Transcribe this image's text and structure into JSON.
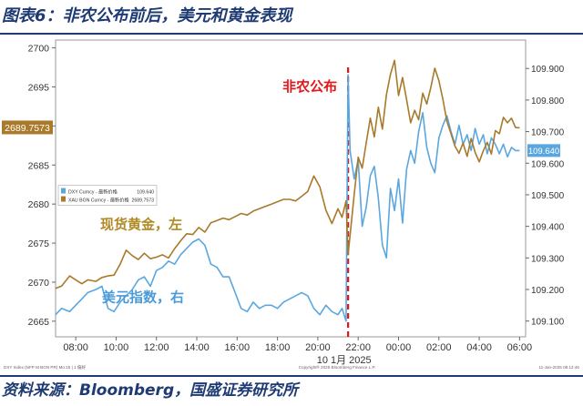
{
  "title": "图表6：非农公布前后，美元和黄金表现",
  "source": "资料来源：Bloomberg，国盛证券研究所",
  "colors": {
    "gold": "#a87a2a",
    "dxy": "#5aa7e0",
    "event": "#e0181b",
    "text_blue": "#1f3b73",
    "label_gold": "#b08a25",
    "label_blue": "#4a9ad8"
  },
  "chart_data": {
    "type": "line",
    "title": "",
    "xlabel": "10 1月 2025",
    "x_ticks": [
      "08:00",
      "10:00",
      "12:00",
      "14:00",
      "16:00",
      "18:00",
      "20:00",
      "22:00",
      "00:00",
      "02:00",
      "04:00",
      "06:00"
    ],
    "y_left": {
      "label": "",
      "ticks": [
        2665,
        2670,
        2675,
        2680,
        2685,
        2690,
        2695,
        2700
      ],
      "ylim": [
        2663,
        2701
      ],
      "last_value": "2689.7573"
    },
    "y_right": {
      "label": "",
      "ticks": [
        "109.100",
        "109.200",
        "109.300",
        "109.400",
        "109.500",
        "109.600",
        "109.700",
        "109.800",
        "109.900"
      ],
      "ylim": [
        109.05,
        109.99
      ],
      "last_value": "109.640"
    },
    "legend": {
      "placement": "middle-left",
      "entries": [
        {
          "name": "DXY Curncy - 最新价格",
          "value": "109.640"
        },
        {
          "name": "XAU BGN Curncy - 最新价格",
          "value": "2689.7573"
        }
      ]
    },
    "annotations": {
      "event": "非农公布",
      "gold_label": "现货黄金，左",
      "dxy_label": "美元指数，右"
    },
    "footer": {
      "left": "DXY Index (NFP M BGN PR)  Mo:15 | 1  偏好",
      "center": "Copyright® 2025 Bloomberg Finance L.P.",
      "right": "11-Jan-2025 08:12:46"
    },
    "event_time": "21:30",
    "series": [
      {
        "name": "XAU BGN Curncy - 最新价格",
        "axis": "left",
        "points": [
          [
            7.0,
            2669.2
          ],
          [
            7.3,
            2669.5
          ],
          [
            7.7,
            2670.8
          ],
          [
            8.0,
            2670.3
          ],
          [
            8.3,
            2669.8
          ],
          [
            8.6,
            2670.3
          ],
          [
            9.0,
            2670.1
          ],
          [
            9.3,
            2670.6
          ],
          [
            9.6,
            2670.8
          ],
          [
            9.9,
            2670.9
          ],
          [
            10.2,
            2672.3
          ],
          [
            10.5,
            2674.1
          ],
          [
            10.8,
            2673.4
          ],
          [
            11.1,
            2672.9
          ],
          [
            11.4,
            2673.7
          ],
          [
            11.7,
            2673.0
          ],
          [
            12.0,
            2673.2
          ],
          [
            12.3,
            2673.5
          ],
          [
            12.6,
            2673.1
          ],
          [
            12.9,
            2674.3
          ],
          [
            13.2,
            2675.3
          ],
          [
            13.5,
            2676.2
          ],
          [
            13.8,
            2676.1
          ],
          [
            14.1,
            2677.0
          ],
          [
            14.4,
            2676.4
          ],
          [
            14.7,
            2677.6
          ],
          [
            15.0,
            2677.9
          ],
          [
            15.3,
            2678.2
          ],
          [
            15.6,
            2678.0
          ],
          [
            15.9,
            2678.4
          ],
          [
            16.2,
            2678.8
          ],
          [
            16.5,
            2678.6
          ],
          [
            16.8,
            2679.1
          ],
          [
            17.1,
            2679.4
          ],
          [
            17.4,
            2679.7
          ],
          [
            17.7,
            2680.0
          ],
          [
            18.0,
            2680.3
          ],
          [
            18.3,
            2680.6
          ],
          [
            18.6,
            2680.6
          ],
          [
            18.9,
            2680.4
          ],
          [
            19.2,
            2681.0
          ],
          [
            19.5,
            2681.6
          ],
          [
            19.8,
            2683.6
          ],
          [
            20.1,
            2682.2
          ],
          [
            20.4,
            2679.2
          ],
          [
            20.7,
            2677.5
          ],
          [
            21.0,
            2679.4
          ],
          [
            21.2,
            2678.3
          ],
          [
            21.4,
            2680.4
          ],
          [
            21.5,
            2673.5
          ],
          [
            21.6,
            2676.0
          ],
          [
            21.8,
            2681.2
          ],
          [
            22.0,
            2686.0
          ],
          [
            22.2,
            2684.6
          ],
          [
            22.4,
            2687.8
          ],
          [
            22.6,
            2691.0
          ],
          [
            22.8,
            2688.6
          ],
          [
            23.0,
            2692.4
          ],
          [
            23.2,
            2689.6
          ],
          [
            23.4,
            2694.0
          ],
          [
            23.6,
            2696.6
          ],
          [
            23.8,
            2698.4
          ],
          [
            24.0,
            2693.9
          ],
          [
            24.2,
            2696.2
          ],
          [
            24.4,
            2693.4
          ],
          [
            24.6,
            2690.4
          ],
          [
            24.8,
            2692.0
          ],
          [
            25.0,
            2690.8
          ],
          [
            25.2,
            2694.2
          ],
          [
            25.4,
            2692.8
          ],
          [
            25.6,
            2694.9
          ],
          [
            25.8,
            2697.4
          ],
          [
            26.0,
            2695.8
          ],
          [
            26.2,
            2693.4
          ],
          [
            26.4,
            2690.6
          ],
          [
            26.6,
            2689.0
          ],
          [
            26.8,
            2687.4
          ],
          [
            27.0,
            2686.5
          ],
          [
            27.2,
            2687.8
          ],
          [
            27.4,
            2686.1
          ],
          [
            27.6,
            2688.4
          ],
          [
            27.8,
            2686.6
          ],
          [
            28.0,
            2685.4
          ],
          [
            28.2,
            2686.8
          ],
          [
            28.4,
            2687.9
          ],
          [
            28.6,
            2686.4
          ],
          [
            28.8,
            2689.4
          ],
          [
            29.0,
            2689.0
          ],
          [
            29.2,
            2691.1
          ],
          [
            29.4,
            2690.4
          ],
          [
            29.6,
            2691.0
          ],
          [
            29.8,
            2689.8
          ],
          [
            30.0,
            2689.76
          ]
        ]
      },
      {
        "name": "DXY Curncy - 最新价格",
        "axis": "right",
        "points": [
          [
            7.0,
            109.12
          ],
          [
            7.3,
            109.14
          ],
          [
            7.7,
            109.13
          ],
          [
            8.0,
            109.15
          ],
          [
            8.3,
            109.17
          ],
          [
            8.6,
            109.19
          ],
          [
            9.0,
            109.2
          ],
          [
            9.3,
            109.21
          ],
          [
            9.6,
            109.14
          ],
          [
            9.9,
            109.13
          ],
          [
            10.2,
            109.16
          ],
          [
            10.5,
            109.18
          ],
          [
            10.8,
            109.2
          ],
          [
            11.1,
            109.23
          ],
          [
            11.4,
            109.24
          ],
          [
            11.7,
            109.21
          ],
          [
            12.0,
            109.26
          ],
          [
            12.3,
            109.27
          ],
          [
            12.6,
            109.29
          ],
          [
            12.9,
            109.28
          ],
          [
            13.2,
            109.31
          ],
          [
            13.5,
            109.33
          ],
          [
            13.8,
            109.35
          ],
          [
            14.1,
            109.36
          ],
          [
            14.4,
            109.34
          ],
          [
            14.7,
            109.28
          ],
          [
            15.0,
            109.27
          ],
          [
            15.3,
            109.24
          ],
          [
            15.6,
            109.24
          ],
          [
            15.9,
            109.19
          ],
          [
            16.2,
            109.14
          ],
          [
            16.5,
            109.13
          ],
          [
            16.8,
            109.16
          ],
          [
            17.1,
            109.14
          ],
          [
            17.4,
            109.15
          ],
          [
            17.7,
            109.15
          ],
          [
            18.0,
            109.14
          ],
          [
            18.3,
            109.16
          ],
          [
            18.6,
            109.17
          ],
          [
            18.9,
            109.18
          ],
          [
            19.2,
            109.19
          ],
          [
            19.5,
            109.18
          ],
          [
            19.8,
            109.14
          ],
          [
            20.1,
            109.12
          ],
          [
            20.4,
            109.15
          ],
          [
            20.7,
            109.13
          ],
          [
            21.0,
            109.12
          ],
          [
            21.2,
            109.14
          ],
          [
            21.4,
            109.1
          ],
          [
            21.5,
            109.88
          ],
          [
            21.6,
            109.64
          ],
          [
            21.8,
            109.55
          ],
          [
            22.0,
            109.61
          ],
          [
            22.2,
            109.4
          ],
          [
            22.4,
            109.46
          ],
          [
            22.6,
            109.56
          ],
          [
            22.8,
            109.59
          ],
          [
            23.0,
            109.49
          ],
          [
            23.2,
            109.34
          ],
          [
            23.4,
            109.3
          ],
          [
            23.6,
            109.52
          ],
          [
            23.8,
            109.45
          ],
          [
            24.0,
            109.55
          ],
          [
            24.2,
            109.41
          ],
          [
            24.4,
            109.58
          ],
          [
            24.6,
            109.64
          ],
          [
            24.8,
            109.6
          ],
          [
            25.0,
            109.7
          ],
          [
            25.2,
            109.76
          ],
          [
            25.4,
            109.65
          ],
          [
            25.6,
            109.6
          ],
          [
            25.8,
            109.57
          ],
          [
            26.0,
            109.68
          ],
          [
            26.2,
            109.72
          ],
          [
            26.4,
            109.75
          ],
          [
            26.6,
            109.7
          ],
          [
            26.8,
            109.66
          ],
          [
            27.0,
            109.72
          ],
          [
            27.2,
            109.66
          ],
          [
            27.4,
            109.69
          ],
          [
            27.6,
            109.64
          ],
          [
            27.8,
            109.71
          ],
          [
            28.0,
            109.66
          ],
          [
            28.2,
            109.69
          ],
          [
            28.4,
            109.63
          ],
          [
            28.6,
            109.68
          ],
          [
            28.8,
            109.66
          ],
          [
            29.0,
            109.63
          ],
          [
            29.2,
            109.66
          ],
          [
            29.4,
            109.62
          ],
          [
            29.6,
            109.65
          ],
          [
            29.8,
            109.64
          ],
          [
            30.0,
            109.64
          ]
        ]
      }
    ]
  }
}
